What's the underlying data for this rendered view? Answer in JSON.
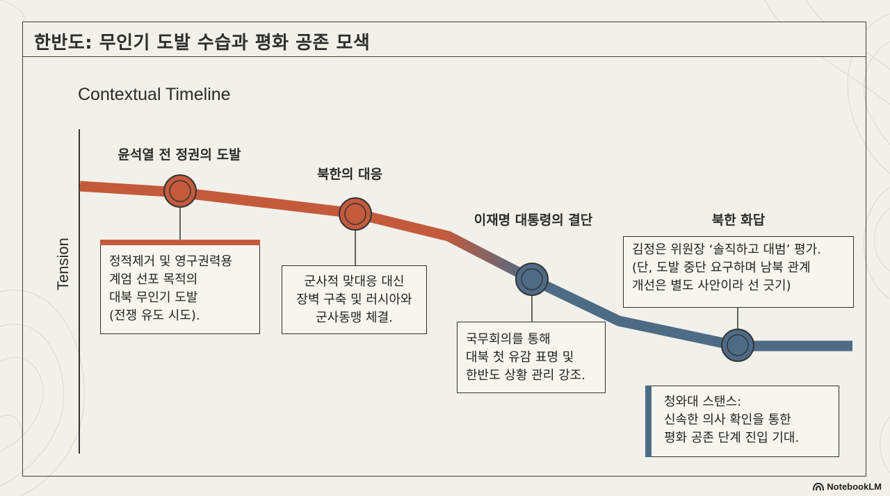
{
  "header": {
    "title": "한반도: 무인기 도발 수습과 평화 공존 모색"
  },
  "subtitle": "Contextual Timeline",
  "axis": {
    "y_label": "Tension"
  },
  "stages": [
    {
      "label": "윤석열 전 정권의 도발",
      "color": "#c45a3c",
      "tension": 0.92,
      "box_lines": [
        "정적제거 및 영구권력용",
        "계엄 선포 목적의",
        "대북 무인기 도발",
        "(전쟁 유도 시도)."
      ]
    },
    {
      "label": "북한의 대응",
      "color": "#c45a3c",
      "tension": 0.84,
      "box_lines": [
        "군사적 맞대응 대신",
        "장벽 구축 및 러시아와",
        "군사동맹 체결."
      ]
    },
    {
      "label": "이재명 대통령의 결단",
      "color": "#4e6b86",
      "tension": 0.48,
      "box_lines": [
        "국무회의를 통해",
        "대북 첫 유감 표명 및",
        "한반도 상황 관리 강조."
      ]
    },
    {
      "label": "북한 화답",
      "color": "#4e6b86",
      "tension": 0.14,
      "box_lines": [
        "김정은 위원장 ‘솔직하고 대범’ 평가.",
        "(단, 도발 중단 요구하며 남북 관계",
        "개선은 별도 사안이라 선 긋기)"
      ]
    }
  ],
  "stance": {
    "lines": [
      "청와대 스탠스:",
      "신속한 의사 확인을 통한",
      "평화 공존 단계 진입 기대."
    ]
  },
  "colors": {
    "escalation": "#c45a3c",
    "deescalation": "#4e6b86",
    "frame": "#3b3b3b",
    "background": "#f1f0ea"
  },
  "watermark": {
    "text": "NotebookLM",
    "icon": "notebooklm-logo-icon"
  }
}
